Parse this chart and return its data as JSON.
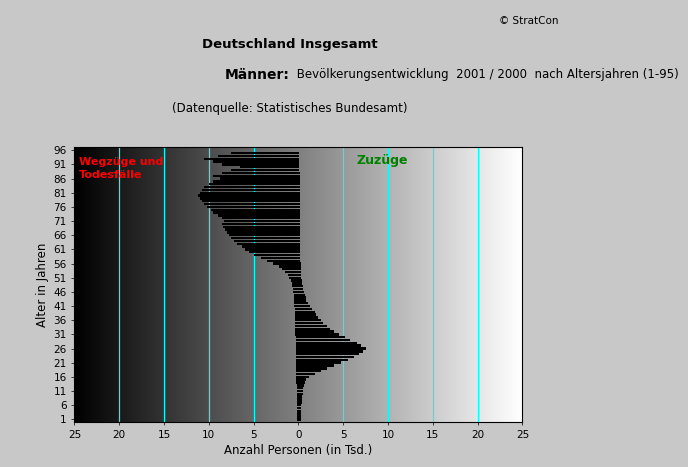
{
  "title1": "Deutschland Insgesamt",
  "title2_bold": "Männer:",
  "title2_normal": " Bevölkerungsentwicklung  2001 / 2000  nach Altersjahren (1-95)",
  "title3": "(Datenquelle: Statistisches Bundesamt)",
  "copyright": "© StratCon",
  "xlabel": "Anzahl Personen (in Tsd.)",
  "ylabel": "Alter in Jahren",
  "label_left": "Wegzüge und\nTodesfälle",
  "label_right": "Zuzüge",
  "xlim": [
    -25,
    25
  ],
  "ylim": [
    0.0,
    97
  ],
  "yticks": [
    1,
    6,
    11,
    16,
    21,
    26,
    31,
    36,
    41,
    46,
    51,
    56,
    61,
    66,
    71,
    76,
    81,
    86,
    91,
    96
  ],
  "xticks": [
    -25,
    -20,
    -15,
    -10,
    -5,
    0,
    5,
    10,
    15,
    20,
    25
  ],
  "xticklabels": [
    "25",
    "20",
    "15",
    "10",
    "5",
    "0",
    "5",
    "10",
    "15",
    "20",
    "25"
  ],
  "cyan_lines": [
    -20,
    -15,
    -10,
    -5,
    5,
    10,
    15,
    20
  ],
  "bar_color": "#000000",
  "bar_height": 0.85,
  "ages": [
    1,
    2,
    3,
    4,
    5,
    6,
    7,
    8,
    9,
    10,
    11,
    12,
    13,
    14,
    15,
    16,
    17,
    18,
    19,
    20,
    21,
    22,
    23,
    24,
    25,
    26,
    27,
    28,
    29,
    30,
    31,
    32,
    33,
    34,
    35,
    36,
    37,
    38,
    39,
    40,
    41,
    42,
    43,
    44,
    45,
    46,
    47,
    48,
    49,
    50,
    51,
    52,
    53,
    54,
    55,
    56,
    57,
    58,
    59,
    60,
    61,
    62,
    63,
    64,
    65,
    66,
    67,
    68,
    69,
    70,
    71,
    72,
    73,
    74,
    75,
    76,
    77,
    78,
    79,
    80,
    81,
    82,
    83,
    84,
    85,
    86,
    87,
    88,
    89,
    90,
    91,
    92,
    93,
    94,
    95
  ],
  "left_values": [
    0.2,
    0.2,
    0.2,
    0.2,
    0.2,
    0.2,
    0.2,
    0.2,
    0.2,
    0.2,
    0.2,
    0.2,
    0.2,
    0.3,
    0.3,
    0.3,
    0.3,
    0.3,
    0.3,
    0.3,
    0.3,
    0.3,
    0.3,
    0.3,
    0.3,
    0.3,
    0.3,
    0.3,
    0.3,
    0.3,
    0.35,
    0.35,
    0.35,
    0.35,
    0.35,
    0.4,
    0.4,
    0.4,
    0.4,
    0.4,
    0.45,
    0.45,
    0.5,
    0.5,
    0.5,
    0.6,
    0.65,
    0.7,
    0.75,
    0.8,
    1.0,
    1.2,
    1.5,
    1.8,
    2.2,
    2.8,
    3.5,
    4.2,
    5.0,
    5.5,
    6.0,
    6.3,
    6.8,
    7.2,
    7.5,
    7.8,
    8.0,
    8.2,
    8.4,
    8.5,
    8.3,
    8.5,
    9.0,
    9.5,
    9.8,
    10.2,
    10.5,
    10.8,
    11.0,
    11.2,
    11.0,
    10.8,
    10.5,
    10.0,
    9.5,
    8.8,
    9.5,
    8.5,
    7.5,
    6.5,
    8.5,
    9.5,
    10.5,
    9.0,
    7.5
  ],
  "right_values": [
    0.3,
    0.3,
    0.3,
    0.3,
    0.3,
    0.3,
    0.4,
    0.4,
    0.4,
    0.5,
    0.5,
    0.5,
    0.6,
    0.7,
    0.8,
    1.2,
    1.8,
    2.5,
    3.2,
    4.0,
    4.8,
    5.5,
    6.2,
    6.8,
    7.2,
    7.5,
    7.0,
    6.5,
    5.8,
    5.2,
    4.5,
    4.0,
    3.5,
    3.2,
    2.8,
    2.5,
    2.2,
    2.0,
    1.8,
    1.5,
    1.3,
    1.1,
    0.9,
    0.8,
    0.7,
    0.6,
    0.5,
    0.5,
    0.4,
    0.4,
    0.3,
    0.3,
    0.3,
    0.3,
    0.3,
    0.3,
    0.2,
    0.2,
    0.2,
    0.2,
    0.2,
    0.2,
    0.2,
    0.2,
    0.2,
    0.2,
    0.2,
    0.2,
    0.2,
    0.2,
    0.2,
    0.2,
    0.2,
    0.2,
    0.2,
    0.2,
    0.2,
    0.2,
    0.2,
    0.2,
    0.2,
    0.2,
    0.2,
    0.2,
    0.2,
    0.2,
    0.2,
    0.2,
    0.1,
    0.1,
    0.1,
    0.1,
    0.1,
    0.1,
    0.1
  ]
}
